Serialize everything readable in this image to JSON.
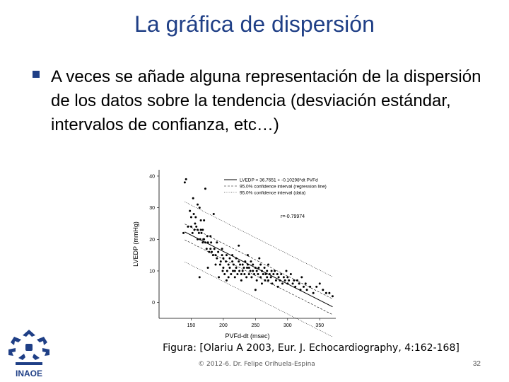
{
  "slide": {
    "title": "La gráfica de dispersión",
    "bullet": "A veces se añade alguna representación de la dispersión de los datos sobre la tendencia (desviación estándar, intervalos de confianza, etc…)",
    "caption": "Figura: [Olariu A 2003, Eur. J. Echocardiography, 4:162-168]",
    "footer": "© 2012-6. Dr. Felipe Orihuela-Espina",
    "page_number": "32",
    "logo_text": "INAOE",
    "accent_color": "#1f3f86"
  },
  "chart_data": {
    "type": "scatter",
    "xlabel": "PVFd-dt (msec)",
    "ylabel": "LVEDP (mmHg)",
    "xlim": [
      100,
      375
    ],
    "ylim": [
      -5,
      42
    ],
    "xticks": [
      150,
      200,
      250,
      300,
      350
    ],
    "yticks": [
      0,
      10,
      20,
      30,
      40
    ],
    "legend": [
      "LVEDP = 36.7651 + -0.10298*dt PVFd",
      "95.0% confidence interval (regression line)",
      "95.0% confidence interval (data)"
    ],
    "annotation": "r=-0.79974",
    "regression": {
      "intercept": 36.7651,
      "slope": -0.10298
    },
    "ci_line_halfwidth": 2.5,
    "ci_data_halfwidth": 9.5,
    "points": [
      [
        138,
        22
      ],
      [
        140,
        38
      ],
      [
        142,
        39
      ],
      [
        145,
        24
      ],
      [
        148,
        29
      ],
      [
        150,
        24
      ],
      [
        150,
        27
      ],
      [
        152,
        22
      ],
      [
        153,
        33
      ],
      [
        154,
        28
      ],
      [
        155,
        23
      ],
      [
        156,
        25
      ],
      [
        157,
        27
      ],
      [
        158,
        24
      ],
      [
        160,
        20
      ],
      [
        160,
        23
      ],
      [
        160,
        31
      ],
      [
        162,
        22
      ],
      [
        163,
        30
      ],
      [
        163,
        8
      ],
      [
        164,
        20
      ],
      [
        165,
        26
      ],
      [
        165,
        23
      ],
      [
        166,
        22
      ],
      [
        168,
        19
      ],
      [
        168,
        23
      ],
      [
        169,
        20
      ],
      [
        170,
        26
      ],
      [
        170,
        20
      ],
      [
        172,
        19
      ],
      [
        172,
        36
      ],
      [
        174,
        17
      ],
      [
        175,
        21
      ],
      [
        176,
        19
      ],
      [
        176,
        11
      ],
      [
        178,
        16
      ],
      [
        180,
        17
      ],
      [
        180,
        21
      ],
      [
        181,
        19
      ],
      [
        182,
        16
      ],
      [
        184,
        15
      ],
      [
        185,
        28
      ],
      [
        186,
        17
      ],
      [
        188,
        15
      ],
      [
        188,
        12
      ],
      [
        190,
        14
      ],
      [
        190,
        19
      ],
      [
        192,
        16
      ],
      [
        193,
        8
      ],
      [
        195,
        12
      ],
      [
        196,
        13
      ],
      [
        198,
        15
      ],
      [
        198,
        17
      ],
      [
        199,
        10
      ],
      [
        200,
        14
      ],
      [
        200,
        11
      ],
      [
        202,
        9
      ],
      [
        204,
        13
      ],
      [
        205,
        15
      ],
      [
        205,
        7
      ],
      [
        206,
        10
      ],
      [
        208,
        12
      ],
      [
        208,
        8
      ],
      [
        210,
        11
      ],
      [
        210,
        14
      ],
      [
        212,
        9
      ],
      [
        214,
        13
      ],
      [
        214,
        15
      ],
      [
        215,
        10
      ],
      [
        216,
        12
      ],
      [
        218,
        8
      ],
      [
        218,
        10
      ],
      [
        220,
        11
      ],
      [
        220,
        14
      ],
      [
        222,
        9
      ],
      [
        224,
        13
      ],
      [
        224,
        18
      ],
      [
        225,
        10
      ],
      [
        226,
        12
      ],
      [
        228,
        9
      ],
      [
        228,
        7
      ],
      [
        230,
        12
      ],
      [
        230,
        10
      ],
      [
        232,
        11
      ],
      [
        233,
        9
      ],
      [
        234,
        13
      ],
      [
        236,
        8
      ],
      [
        237,
        11
      ],
      [
        238,
        12
      ],
      [
        238,
        15
      ],
      [
        240,
        9
      ],
      [
        240,
        11
      ],
      [
        242,
        10
      ],
      [
        243,
        13
      ],
      [
        244,
        8
      ],
      [
        246,
        10
      ],
      [
        246,
        12
      ],
      [
        248,
        9
      ],
      [
        250,
        11
      ],
      [
        250,
        4
      ],
      [
        252,
        7
      ],
      [
        252,
        10
      ],
      [
        254,
        9
      ],
      [
        255,
        11
      ],
      [
        256,
        14
      ],
      [
        258,
        8
      ],
      [
        258,
        12
      ],
      [
        260,
        10
      ],
      [
        260,
        6
      ],
      [
        262,
        9
      ],
      [
        264,
        11
      ],
      [
        265,
        7
      ],
      [
        266,
        9
      ],
      [
        268,
        10
      ],
      [
        268,
        8
      ],
      [
        270,
        7
      ],
      [
        270,
        12
      ],
      [
        272,
        9
      ],
      [
        274,
        8
      ],
      [
        275,
        10
      ],
      [
        276,
        6
      ],
      [
        278,
        9
      ],
      [
        280,
        10
      ],
      [
        282,
        7
      ],
      [
        284,
        9
      ],
      [
        285,
        5
      ],
      [
        286,
        8
      ],
      [
        288,
        7
      ],
      [
        290,
        9
      ],
      [
        292,
        6
      ],
      [
        294,
        8
      ],
      [
        296,
        7
      ],
      [
        298,
        10
      ],
      [
        300,
        6
      ],
      [
        300,
        8
      ],
      [
        302,
        7
      ],
      [
        305,
        9
      ],
      [
        308,
        6
      ],
      [
        310,
        7
      ],
      [
        312,
        5
      ],
      [
        315,
        7
      ],
      [
        318,
        6
      ],
      [
        320,
        4
      ],
      [
        322,
        8
      ],
      [
        325,
        5
      ],
      [
        328,
        6
      ],
      [
        330,
        4
      ],
      [
        335,
        5
      ],
      [
        340,
        3
      ],
      [
        345,
        5
      ],
      [
        350,
        6
      ],
      [
        355,
        4
      ],
      [
        360,
        3
      ],
      [
        365,
        3
      ],
      [
        370,
        2
      ]
    ]
  }
}
